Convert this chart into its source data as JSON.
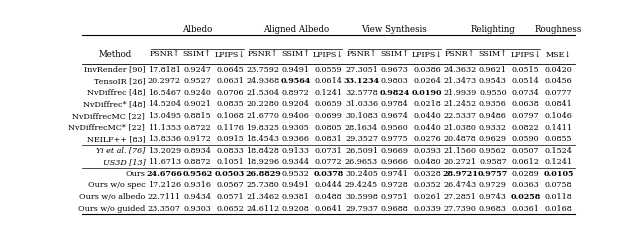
{
  "col_groups": [
    {
      "name": "Albedo",
      "cols": [
        "PSNR↑",
        "SSIM↑",
        "LPIPS↓"
      ],
      "span": 3
    },
    {
      "name": "Aligned Albedo",
      "cols": [
        "PSNR↑",
        "SSIM↑",
        "LPIPS↓"
      ],
      "span": 3
    },
    {
      "name": "View Synthesis",
      "cols": [
        "PSNR↑",
        "SSIM↑",
        "LPIPS↓"
      ],
      "span": 3
    },
    {
      "name": "Relighting",
      "cols": [
        "PSNR↑",
        "SSIM↑",
        "LPIPS↓"
      ],
      "span": 3
    },
    {
      "name": "Roughness",
      "cols": [
        "MSE↓"
      ],
      "span": 1
    }
  ],
  "methods": [
    "InvRender [90]",
    "TensoIR [26]",
    "NvDiffrec [48]",
    "NvDiffrec* [48]",
    "NvDiffrecMC [22]",
    "NvDiffrecMC* [22]",
    "NEILF++ [83]",
    "Yi et al. [76]",
    "US3D [13]",
    "Ours",
    "Ours w/o spec",
    "Ours w/o albedo",
    "Ours w/o guided"
  ],
  "italic_rows": [
    7,
    8
  ],
  "data": [
    [
      17.8181,
      0.9247,
      0.0645,
      23.7592,
      0.9491,
      0.0559,
      27.3051,
      0.9673,
      0.0386,
      24.3632,
      0.9621,
      0.0515,
      0.042
    ],
    [
      20.2972,
      0.9527,
      0.0631,
      24.9368,
      0.9564,
      0.0614,
      33.1234,
      0.9803,
      0.0264,
      21.3473,
      0.9543,
      0.0514,
      0.0456
    ],
    [
      16.5467,
      0.924,
      0.0706,
      21.5304,
      0.8972,
      0.1241,
      32.5778,
      0.9824,
      0.019,
      21.9939,
      0.955,
      0.0734,
      0.0777
    ],
    [
      14.5204,
      0.9021,
      0.0835,
      20.228,
      0.9204,
      0.0659,
      31.0336,
      0.9784,
      0.0218,
      21.2452,
      0.9356,
      0.0638,
      0.0841
    ],
    [
      13.0495,
      0.8815,
      0.1068,
      21.677,
      0.9406,
      0.0699,
      30.1083,
      0.9674,
      0.044,
      22.5337,
      0.9486,
      0.0797,
      0.1046
    ],
    [
      11.1353,
      0.8722,
      0.1176,
      19.8325,
      0.9305,
      0.0805,
      28.1634,
      0.956,
      0.044,
      21.038,
      0.9332,
      0.0822,
      0.1411
    ],
    [
      13.8336,
      0.9172,
      0.0915,
      18.4543,
      0.9366,
      0.0831,
      29.3527,
      0.9775,
      0.0276,
      20.4878,
      0.9629,
      0.059,
      0.0855
    ],
    [
      13.2029,
      0.8934,
      0.0833,
      18.8428,
      0.9133,
      0.0731,
      26.5091,
      0.9669,
      0.0393,
      21.156,
      0.9562,
      0.0507,
      0.1524
    ],
    [
      11.6713,
      0.8872,
      0.1051,
      18.9296,
      0.9344,
      0.0772,
      26.9653,
      0.9666,
      0.048,
      20.2721,
      0.9587,
      0.0612,
      0.1241
    ],
    [
      24.6766,
      0.9562,
      0.0503,
      26.8829,
      0.9532,
      0.0378,
      30.2405,
      0.9741,
      0.0328,
      28.9721,
      0.9757,
      0.0289,
      0.0105
    ],
    [
      17.2126,
      0.9316,
      0.0567,
      25.738,
      0.9491,
      0.0444,
      29.4245,
      0.9728,
      0.0352,
      26.4743,
      0.9729,
      0.0363,
      0.0758
    ],
    [
      22.7111,
      0.9434,
      0.0571,
      21.3462,
      0.9381,
      0.0488,
      30.5998,
      0.9751,
      0.0261,
      27.2851,
      0.9743,
      0.0258,
      0.0118
    ],
    [
      23.3507,
      0.9303,
      0.0652,
      24.6112,
      0.9208,
      0.0641,
      29.7937,
      0.9688,
      0.0339,
      27.739,
      0.9683,
      0.0361,
      0.0168
    ]
  ],
  "bold": [
    [
      false,
      false,
      false,
      false,
      false,
      false,
      false,
      false,
      false,
      false,
      false,
      false,
      false
    ],
    [
      false,
      false,
      false,
      false,
      true,
      false,
      true,
      false,
      false,
      false,
      false,
      false,
      false
    ],
    [
      false,
      false,
      false,
      false,
      false,
      false,
      false,
      true,
      true,
      false,
      false,
      false,
      false
    ],
    [
      false,
      false,
      false,
      false,
      false,
      false,
      false,
      false,
      false,
      false,
      false,
      false,
      false
    ],
    [
      false,
      false,
      false,
      false,
      false,
      false,
      false,
      false,
      false,
      false,
      false,
      false,
      false
    ],
    [
      false,
      false,
      false,
      false,
      false,
      false,
      false,
      false,
      false,
      false,
      false,
      false,
      false
    ],
    [
      false,
      false,
      false,
      false,
      false,
      false,
      false,
      false,
      false,
      false,
      false,
      false,
      false
    ],
    [
      false,
      false,
      false,
      false,
      false,
      false,
      false,
      false,
      false,
      false,
      false,
      false,
      false
    ],
    [
      false,
      false,
      false,
      false,
      false,
      false,
      false,
      false,
      false,
      false,
      false,
      false,
      false
    ],
    [
      true,
      true,
      true,
      true,
      false,
      true,
      false,
      false,
      false,
      true,
      true,
      false,
      true
    ],
    [
      false,
      false,
      false,
      false,
      false,
      false,
      false,
      false,
      false,
      false,
      false,
      false,
      false
    ],
    [
      false,
      false,
      false,
      false,
      false,
      false,
      false,
      false,
      false,
      false,
      false,
      true,
      false
    ],
    [
      false,
      false,
      false,
      false,
      false,
      false,
      false,
      false,
      false,
      false,
      false,
      false,
      false
    ]
  ],
  "separator_after": [
    6,
    8
  ],
  "bg_color": "#ffffff",
  "header_color": "#000000",
  "text_color": "#000000",
  "font_size": 5.8,
  "header_font_size": 6.2
}
